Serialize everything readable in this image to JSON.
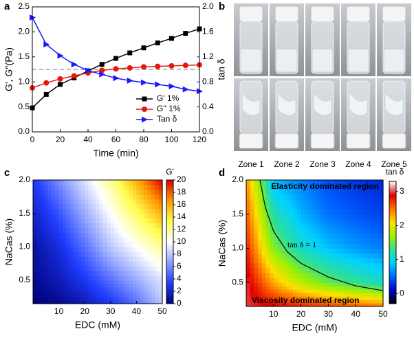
{
  "chart_data": [
    {
      "type": "line",
      "panel_label": "a",
      "x_label": "Time (min)",
      "y_label": "G', G''(Pa)",
      "y2_label": "tan δ",
      "x": [
        0,
        10,
        20,
        30,
        40,
        50,
        60,
        70,
        80,
        90,
        100,
        110,
        120
      ],
      "xlim": [
        0,
        120
      ],
      "xticks": [
        0,
        20,
        40,
        60,
        80,
        100,
        120
      ],
      "ylim": [
        0,
        2.5
      ],
      "yticks": [
        {
          "value": 0,
          "label": "0.0"
        },
        0.5,
        {
          "value": 1,
          "label": "1.0"
        },
        1.5,
        {
          "value": 2,
          "label": "2.0"
        },
        2.5
      ],
      "y2lim": [
        0,
        2.0
      ],
      "y2ticks": [
        {
          "value": 0,
          "label": "0.0"
        },
        0.4,
        0.8,
        1.2,
        1.6,
        {
          "value": 2,
          "label": "2.0"
        }
      ],
      "y2_color": "#1a1aff",
      "reference_line": 1.25,
      "legend": "lower right",
      "series": [
        {
          "name": "G' 1%",
          "color": "#000000",
          "marker": "square",
          "values": [
            0.48,
            0.75,
            0.95,
            1.08,
            1.22,
            1.35,
            1.47,
            1.58,
            1.68,
            1.78,
            1.87,
            1.97,
            2.06
          ]
        },
        {
          "name": "G'' 1%",
          "color": "#e8160c",
          "marker": "circle",
          "values": [
            0.88,
            0.98,
            1.06,
            1.12,
            1.18,
            1.23,
            1.26,
            1.28,
            1.3,
            1.31,
            1.32,
            1.33,
            1.34
          ]
        },
        {
          "name": "Tan δ",
          "color": "#1a1aff",
          "marker": "triangle",
          "axis": "y2",
          "values": [
            1.83,
            1.4,
            1.22,
            1.08,
            0.98,
            0.92,
            0.86,
            0.82,
            0.79,
            0.76,
            0.73,
            0.68,
            0.65
          ]
        }
      ]
    },
    {
      "type": "photo",
      "panel_label": "b",
      "captions": [
        "Zone 1",
        "Zone 2",
        "Zone 3",
        "Zone 4",
        "Zone 5"
      ]
    },
    {
      "type": "heatmap",
      "panel_label": "c",
      "x_label": "EDC (mM)",
      "y_label": "NaCas (%)",
      "colorbar_label": "G'",
      "x": [
        0,
        10,
        20,
        30,
        40,
        50
      ],
      "y": [
        0.15,
        0.5,
        1.0,
        1.5,
        2.0
      ],
      "z": [
        [
          0,
          0.5,
          1.5,
          3,
          5,
          8
        ],
        [
          0.5,
          1.5,
          3,
          5,
          7,
          9
        ],
        [
          1,
          2.5,
          5,
          8,
          10,
          12
        ],
        [
          2,
          4,
          7,
          10,
          13,
          16
        ],
        [
          3,
          6,
          9,
          12,
          16,
          20
        ]
      ],
      "xlim": [
        0,
        50
      ],
      "xticks": [
        10,
        20,
        30,
        40,
        50
      ],
      "ylim": [
        0.15,
        2.0
      ],
      "yticks": [
        0.5,
        {
          "value": 1,
          "label": "1.0"
        },
        1.5,
        {
          "value": 2,
          "label": "2.0"
        }
      ],
      "zlim": [
        0,
        20
      ],
      "zticks": [
        0,
        2,
        4,
        6,
        8,
        10,
        12,
        14,
        16,
        18,
        20
      ],
      "colorscale": [
        "#00007a",
        "#1f3cff",
        "#8ea2ff",
        "#ffffff",
        "#ffff50",
        "#ff9a00",
        "#e00000"
      ]
    },
    {
      "type": "heatmap",
      "panel_label": "d",
      "x_label": "EDC (mM)",
      "y_label": "NaCas (%)",
      "colorbar_label": "tan δ",
      "x": [
        0,
        10,
        20,
        30,
        40,
        50
      ],
      "y": [
        0.15,
        0.5,
        1.0,
        1.5,
        2.0
      ],
      "z": [
        [
          3.0,
          2.9,
          2.8,
          2.7,
          2.6,
          2.5
        ],
        [
          3.0,
          2.3,
          1.8,
          1.5,
          1.3,
          1.1
        ],
        [
          2.8,
          1.6,
          1.1,
          0.85,
          0.7,
          0.6
        ],
        [
          2.6,
          1.2,
          0.8,
          0.55,
          0.45,
          0.35
        ],
        [
          2.4,
          0.8,
          0.6,
          0.4,
          0.3,
          0.25
        ]
      ],
      "xlim": [
        0,
        50
      ],
      "xticks": [
        10,
        20,
        30,
        40,
        50
      ],
      "ylim": [
        0.15,
        2.0
      ],
      "yticks": [
        0.5,
        {
          "value": 1,
          "label": "1.0"
        },
        1.5,
        {
          "value": 2,
          "label": "2.0"
        }
      ],
      "zlim": [
        -0.3,
        3.3
      ],
      "zticks": [
        0,
        1,
        2,
        3
      ],
      "colorscale": [
        "#000000",
        "#0000c8",
        "#0064ff",
        "#00d2ff",
        "#30e090",
        "#a0f000",
        "#ffe000",
        "#ff7000",
        "#e00000",
        "#ffffff"
      ],
      "contour_line": {
        "x": [
          5,
          7,
          10,
          15,
          20,
          30,
          40,
          50
        ],
        "y": [
          2.0,
          1.6,
          1.25,
          0.95,
          0.78,
          0.58,
          0.45,
          0.38
        ],
        "label": "tan δ = 1"
      },
      "annotations": [
        "Elasticity dominated region",
        "Viscosity dominated region"
      ]
    }
  ]
}
